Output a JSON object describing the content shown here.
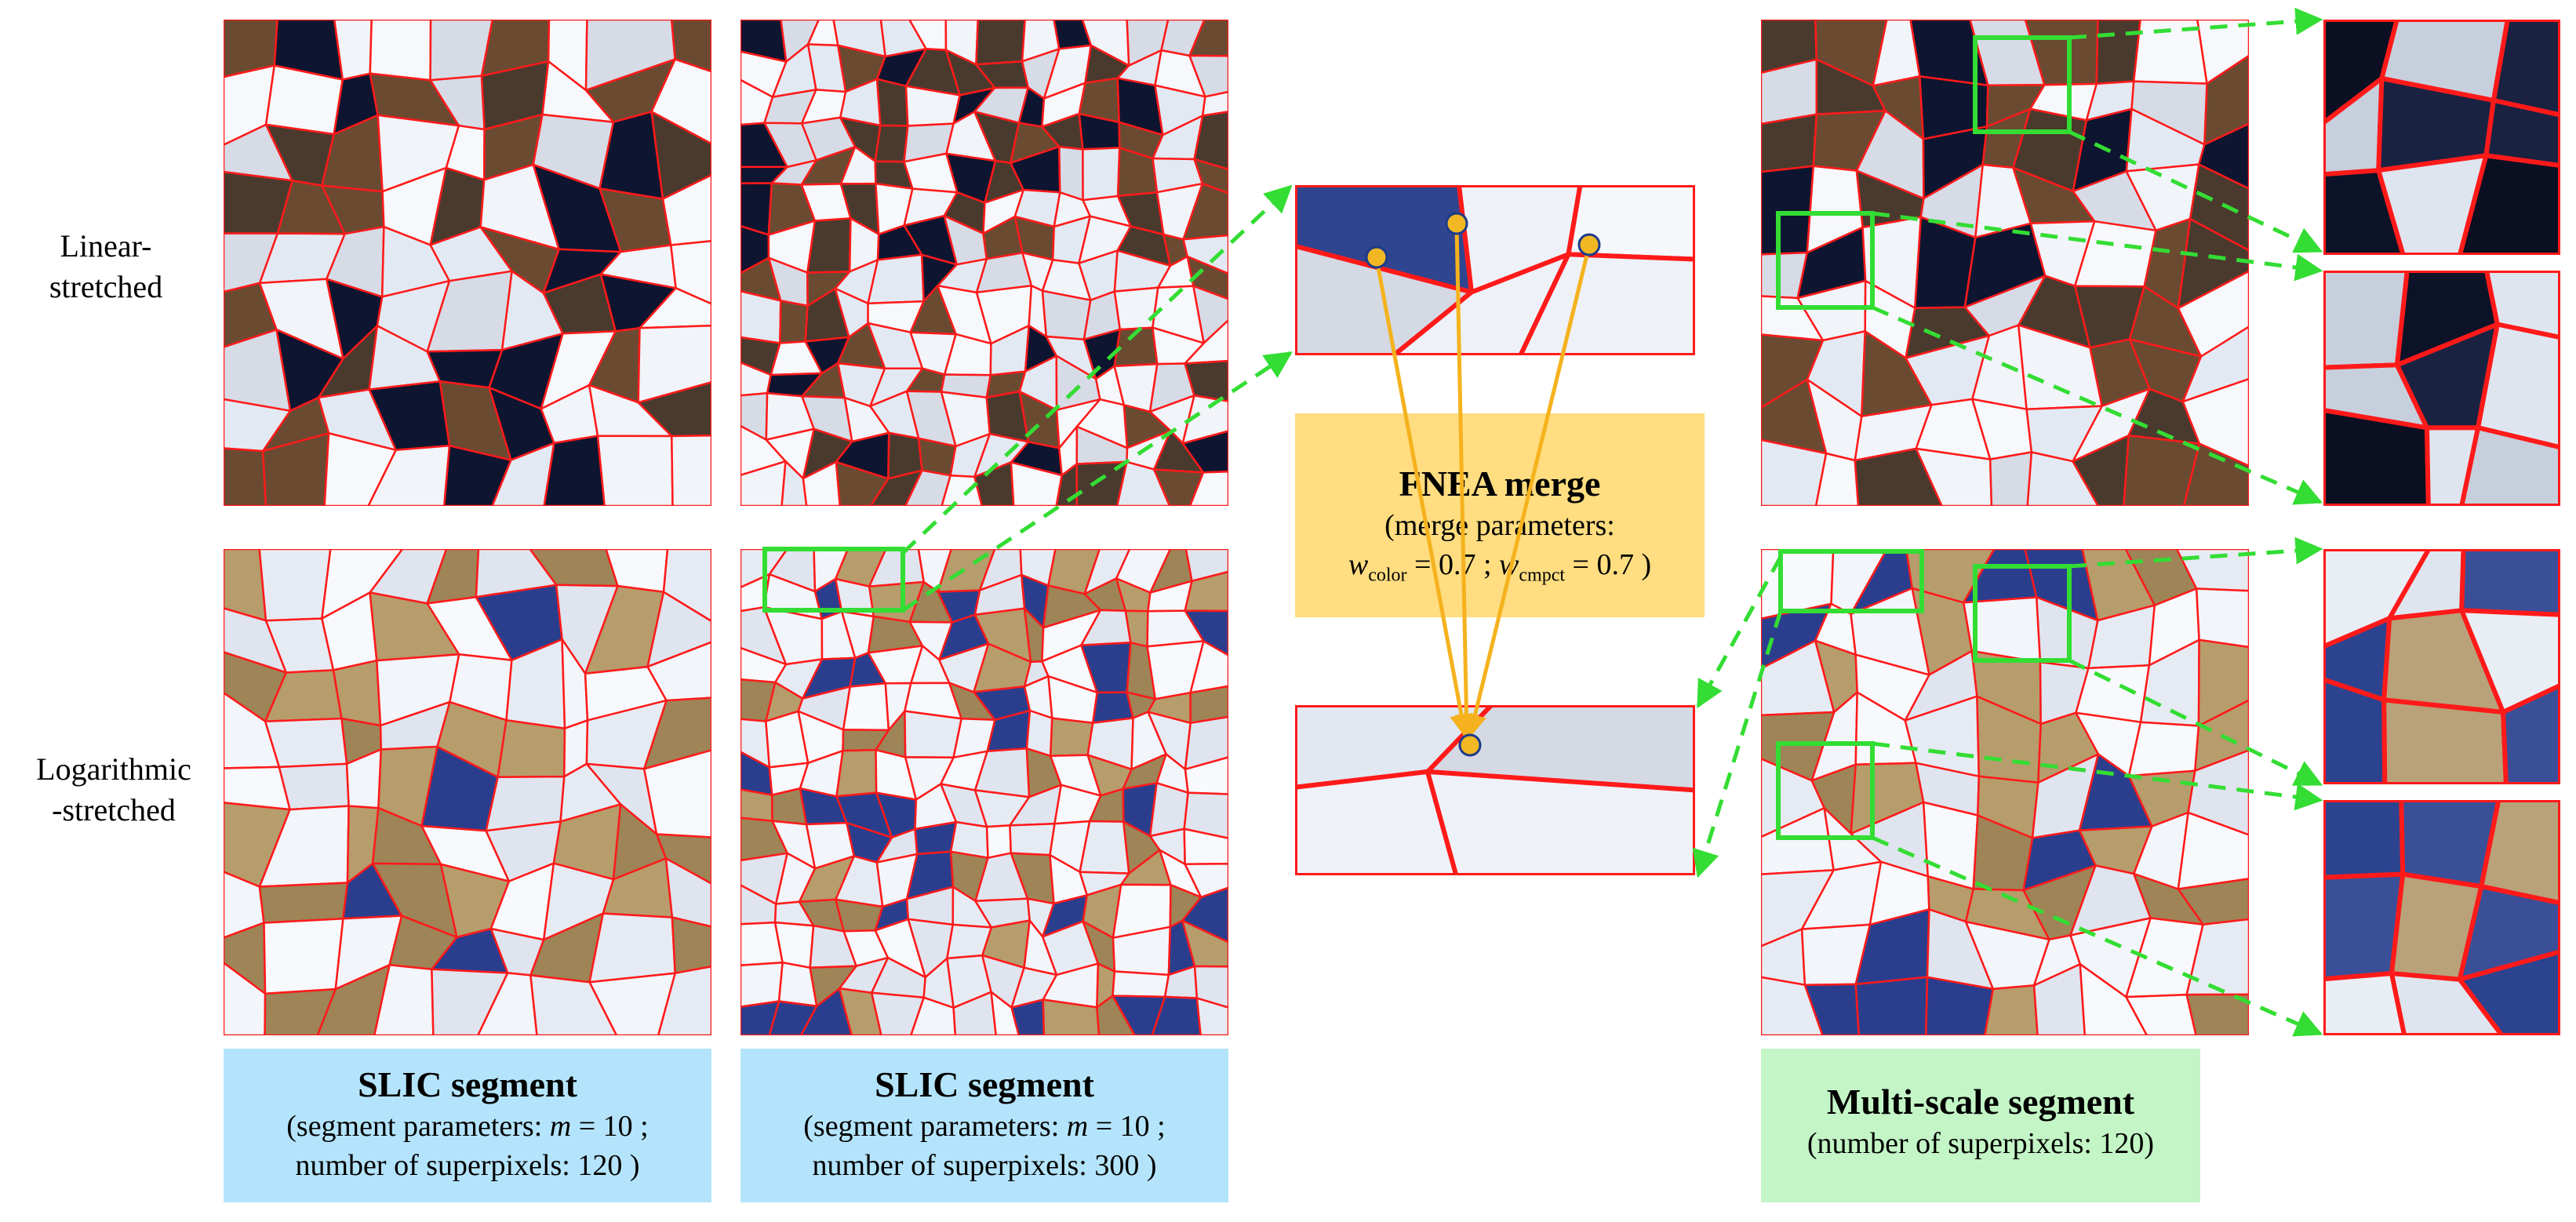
{
  "row_labels": {
    "linear_line1": "Linear-",
    "linear_line2": "stretched",
    "log_line1": "Logarithmic",
    "log_line2": "-stretched"
  },
  "captions": {
    "slic_120": {
      "title": "SLIC segment",
      "line1_prefix": "(segment parameters: ",
      "m_symbol": "m",
      "m_eq": " = 10 ;",
      "line2": "number of superpixels: 120 )"
    },
    "slic_300": {
      "title": "SLIC segment",
      "line1_prefix": "(segment parameters: ",
      "m_symbol": "m",
      "m_eq": " = 10 ;",
      "line2": "number of superpixels: 300 )"
    },
    "fnea": {
      "title": "FNEA merge",
      "line1": "(merge parameters:",
      "w_symbol": "w",
      "color_sub": "color",
      "color_eq": " = 0.7 ; ",
      "cmpct_sub": "cmpct",
      "cmpct_eq": " = 0.7 )"
    },
    "multiscale": {
      "title": "Multi-scale segment",
      "line1": "(number of superpixels: 120)"
    }
  },
  "colors": {
    "segment_boundary": "#ff1a1a",
    "highlight_box": "#33dd33",
    "merge_arrow": "#f5b21e",
    "seed_point": "#f2b824",
    "caption_blue": "#b4e4fb",
    "caption_orange": "#ffdd80",
    "caption_green": "#c4f5c6"
  }
}
